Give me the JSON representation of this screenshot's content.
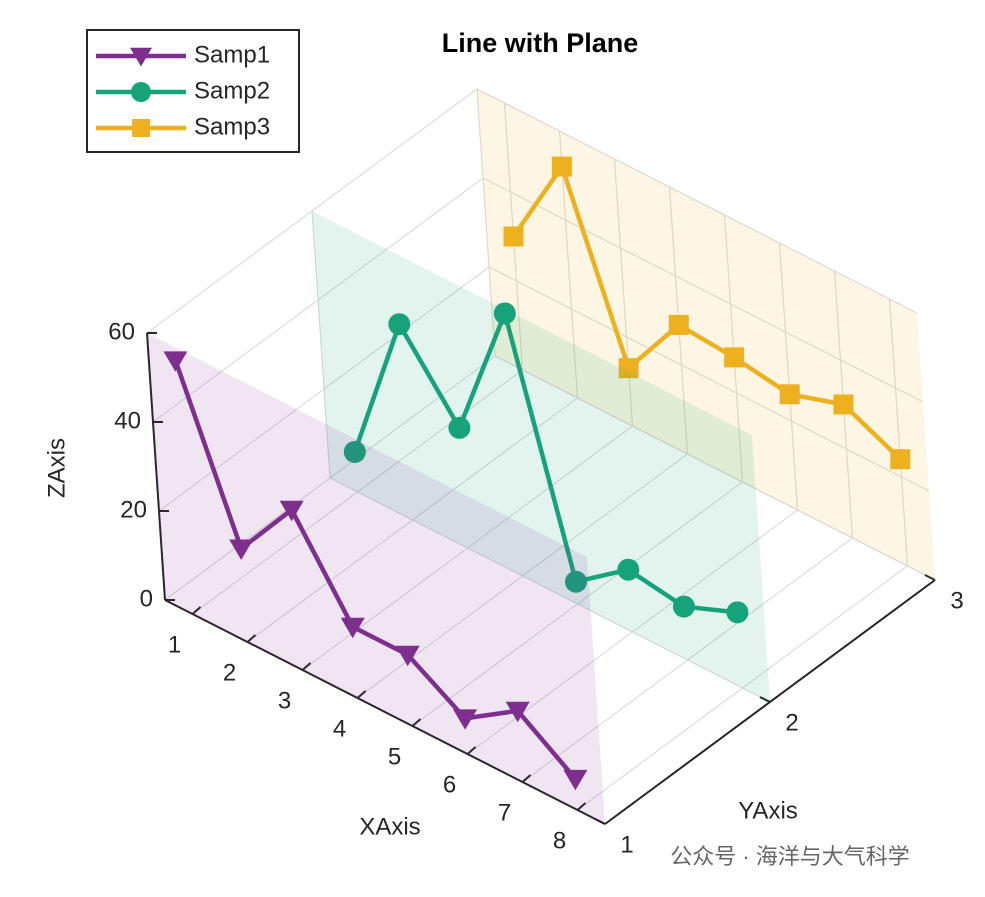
{
  "chart_data": {
    "type": "line3d",
    "title": "Line with Plane",
    "xlabel": "XAxis",
    "ylabel": "YAxis",
    "zlabel": "ZAxis",
    "x": [
      1,
      2,
      3,
      4,
      5,
      6,
      7,
      8
    ],
    "xlim": [
      0.5,
      8.5
    ],
    "ylim": [
      1,
      3
    ],
    "zlim": [
      0,
      60
    ],
    "xticks": [
      1,
      2,
      3,
      4,
      5,
      6,
      7,
      8
    ],
    "yticks": [
      1,
      2,
      3
    ],
    "zticks": [
      0,
      20,
      40,
      60
    ],
    "grid": true,
    "legend": "upper left",
    "series": [
      {
        "name": "Samp1",
        "color": "#7e2f8e",
        "marker": "triangle-down",
        "y": 1,
        "values": [
          57,
          21,
          36,
          16,
          16,
          8,
          16,
          7
        ]
      },
      {
        "name": "Samp2",
        "color": "#17a37a",
        "marker": "circle",
        "y": 2,
        "values": [
          9,
          44,
          27,
          59,
          5,
          14,
          12,
          17
        ]
      },
      {
        "name": "Samp3",
        "color": "#edb120",
        "marker": "square",
        "y": 3,
        "values": [
          30,
          52,
          13,
          29,
          28,
          26,
          30,
          24
        ]
      }
    ],
    "watermark": "公众号 · 海洋与大气科学"
  }
}
